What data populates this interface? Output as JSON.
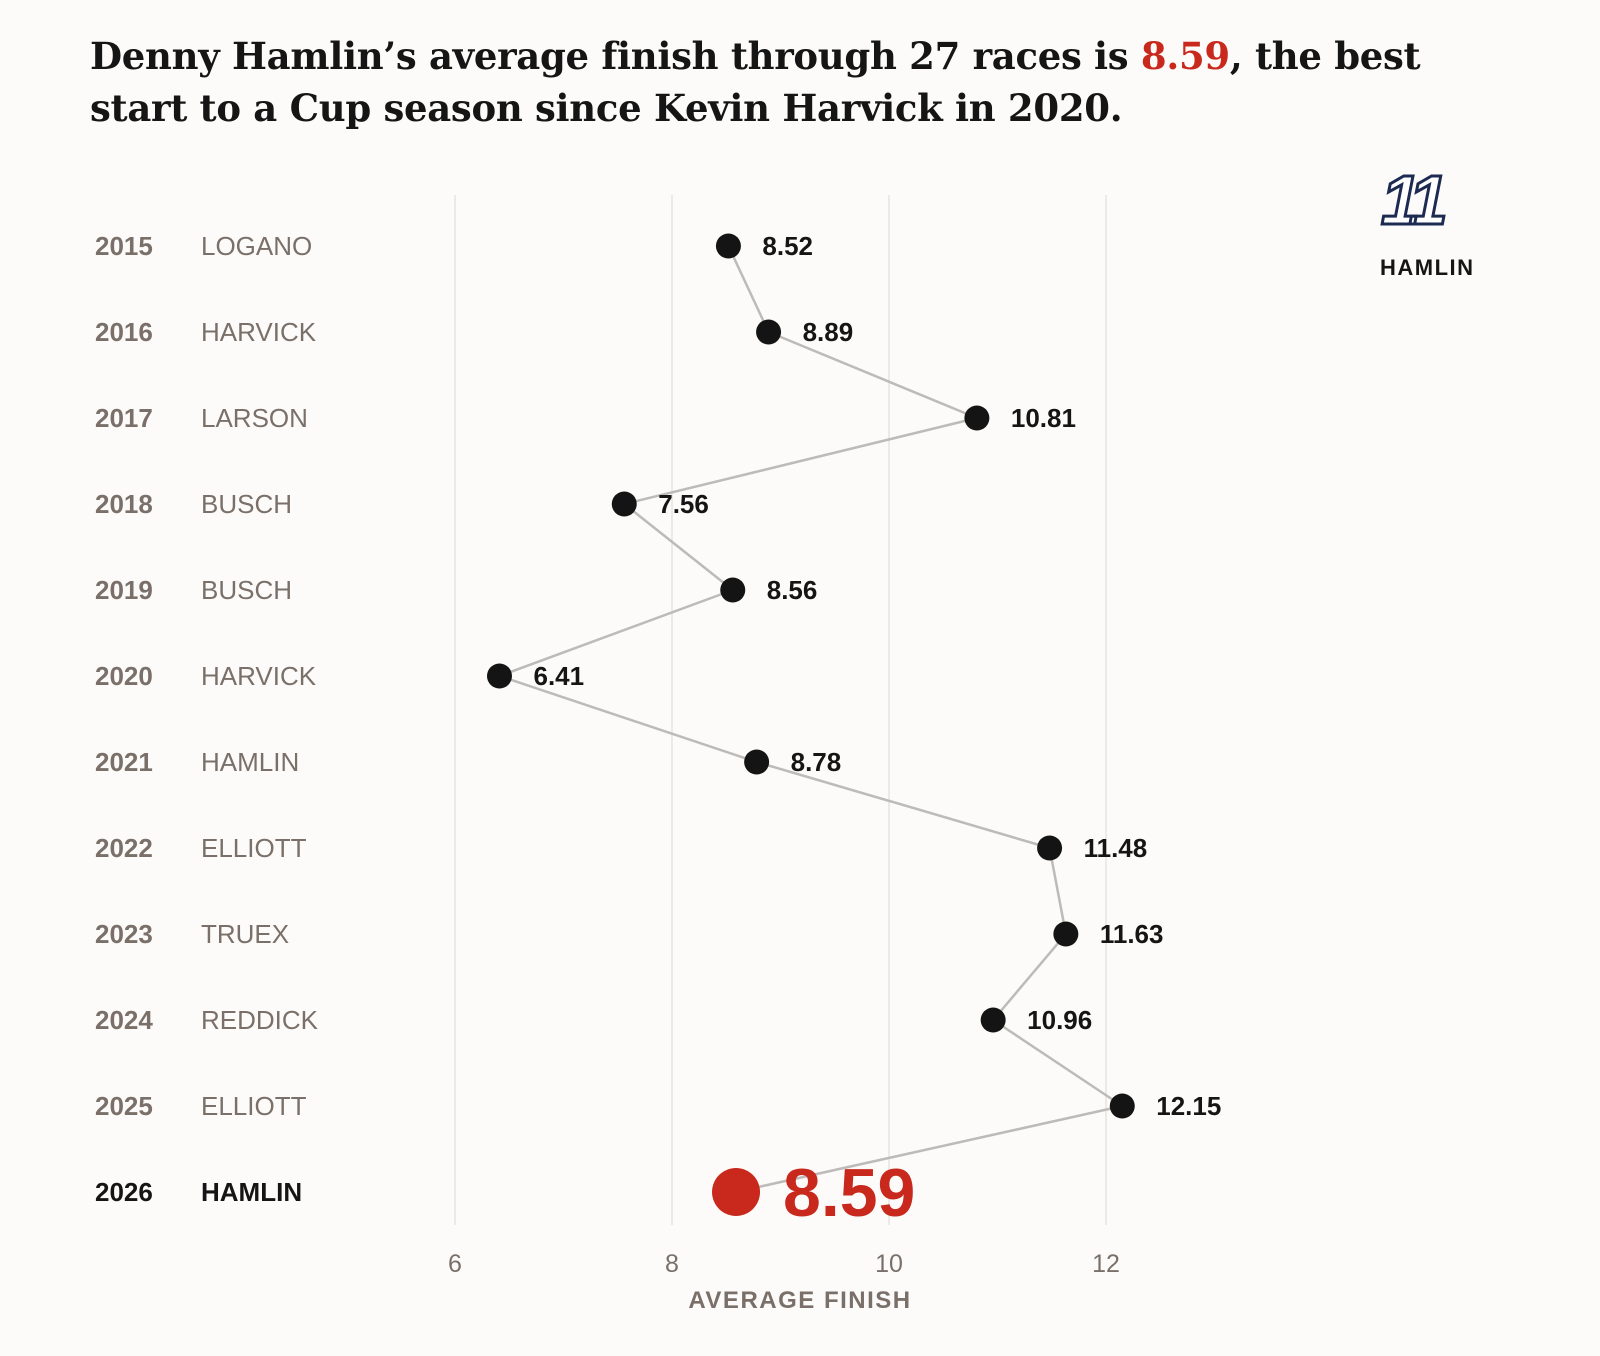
{
  "title": {
    "before": "Denny Hamlin’s average finish through 27 races is ",
    "highlight": "8.59",
    "after": ", the best start to a Cup season since Kevin Harvick in 2020."
  },
  "logo": {
    "number": "11",
    "label": "HAMLIN"
  },
  "colors": {
    "highlight": "#c9281c",
    "point": "#141414",
    "line": "#bdbbb8",
    "grid": "#e6e4e1",
    "muted": "#7a7069"
  },
  "chart_data": {
    "type": "scatter",
    "title": "Denny Hamlin’s average finish through 27 races is 8.59, the best start to a Cup season since Kevin Harvick in 2020.",
    "xlabel": "AVERAGE FINISH",
    "ylabel": "",
    "xlim": [
      5.5,
      12.6
    ],
    "xticks": [
      6,
      8,
      10,
      12
    ],
    "grid": true,
    "connected": true,
    "rows": [
      {
        "year": "2015",
        "driver": "LOGANO",
        "value": 8.52,
        "label": "8.52"
      },
      {
        "year": "2016",
        "driver": "HARVICK",
        "value": 8.89,
        "label": "8.89"
      },
      {
        "year": "2017",
        "driver": "LARSON",
        "value": 10.81,
        "label": "10.81"
      },
      {
        "year": "2018",
        "driver": "BUSCH",
        "value": 7.56,
        "label": "7.56"
      },
      {
        "year": "2019",
        "driver": "BUSCH",
        "value": 8.56,
        "label": "8.56"
      },
      {
        "year": "2020",
        "driver": "HARVICK",
        "value": 6.41,
        "label": "6.41"
      },
      {
        "year": "2021",
        "driver": "HAMLIN",
        "value": 8.78,
        "label": "8.78"
      },
      {
        "year": "2022",
        "driver": "ELLIOTT",
        "value": 11.48,
        "label": "11.48"
      },
      {
        "year": "2023",
        "driver": "TRUEX",
        "value": 11.63,
        "label": "11.63"
      },
      {
        "year": "2024",
        "driver": "REDDICK",
        "value": 10.96,
        "label": "10.96"
      },
      {
        "year": "2025",
        "driver": "ELLIOTT",
        "value": 12.15,
        "label": "12.15"
      },
      {
        "year": "2026",
        "driver": "HAMLIN",
        "value": 8.59,
        "label": "8.59",
        "highlight": true
      }
    ]
  }
}
